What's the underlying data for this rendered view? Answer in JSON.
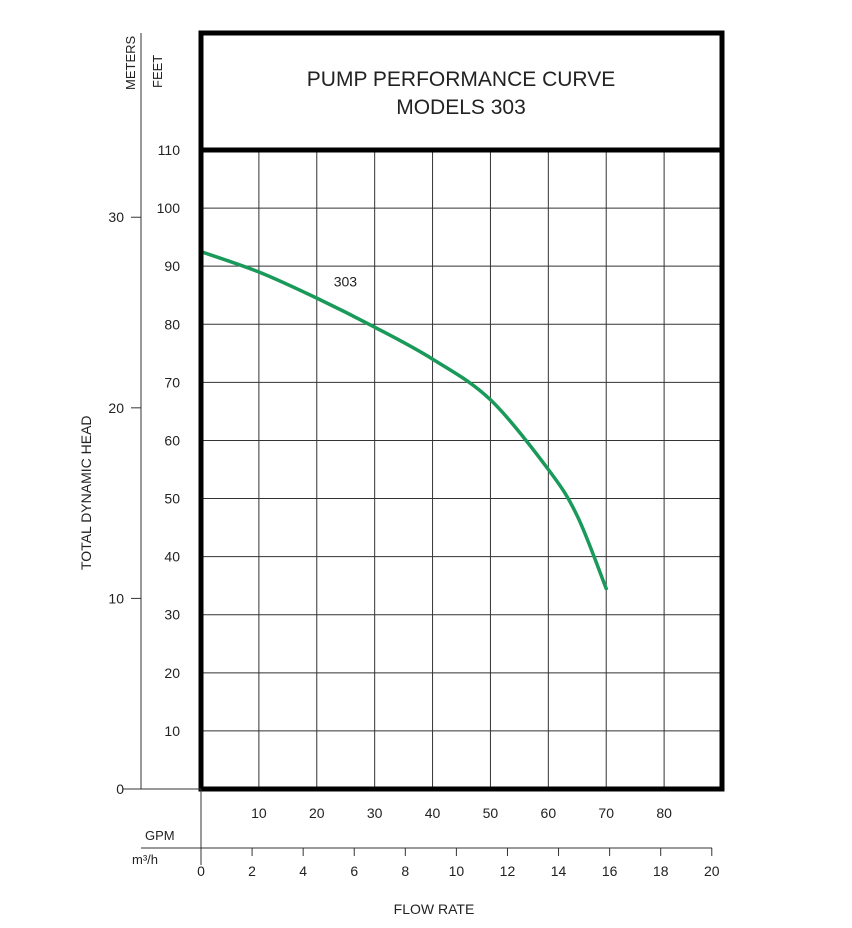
{
  "chart_data": {
    "type": "line",
    "title": [
      "PUMP PERFORMANCE CURVE",
      "MODELS 303"
    ],
    "y_axis_feet": {
      "label": "FEET",
      "ticks": [
        10,
        20,
        30,
        40,
        50,
        60,
        70,
        80,
        90,
        100,
        110
      ],
      "range": [
        0,
        110
      ]
    },
    "y_axis_meters": {
      "label": "METERS",
      "ticks": [
        0,
        10,
        20,
        30
      ],
      "range": [
        0,
        33.528
      ]
    },
    "y_title": "TOTAL DYNAMIC HEAD",
    "x_axis_gpm": {
      "label": "GPM",
      "ticks": [
        10,
        20,
        30,
        40,
        50,
        60,
        70,
        80
      ],
      "range": [
        0,
        90
      ]
    },
    "x_axis_m3h": {
      "label": "m³/h",
      "ticks": [
        0,
        2,
        4,
        6,
        8,
        10,
        12,
        14,
        16,
        18,
        20
      ],
      "range": [
        0,
        20.4
      ]
    },
    "x_title": "FLOW RATE",
    "grid": true,
    "series": [
      {
        "name": "303",
        "color": "#1a9a5a",
        "x": [
          0,
          10,
          20,
          30,
          40,
          50,
          60,
          65,
          70
        ],
        "y": [
          92.5,
          89,
          84.5,
          79.5,
          74,
          67,
          55,
          47,
          34.5
        ]
      }
    ]
  }
}
